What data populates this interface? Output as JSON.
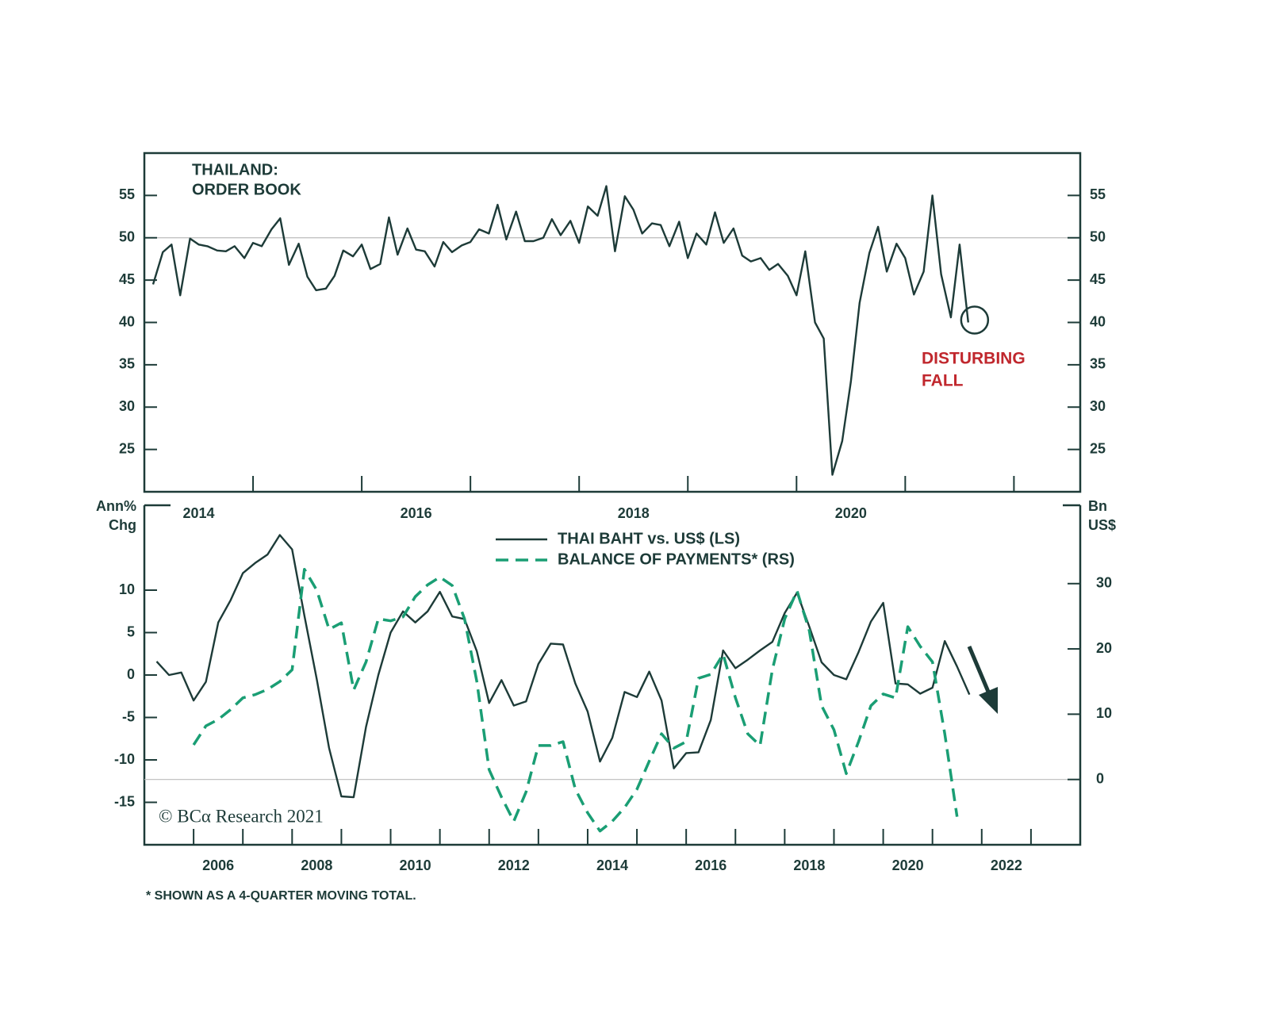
{
  "chart_data": [
    {
      "type": "line",
      "title": [
        "THAILAND:",
        "ORDER BOOK"
      ],
      "annotation": [
        "DISTURBING",
        "FALL"
      ],
      "annotation_color": "#c0272d",
      "x": [
        2014.08,
        2014.17,
        2014.25,
        2014.33,
        2014.42,
        2014.5,
        2014.58,
        2014.67,
        2014.75,
        2014.83,
        2014.92,
        2015,
        2015.08,
        2015.17,
        2015.25,
        2015.33,
        2015.42,
        2015.5,
        2015.58,
        2015.67,
        2015.75,
        2015.83,
        2015.92,
        2016,
        2016.08,
        2016.17,
        2016.25,
        2016.33,
        2016.42,
        2016.5,
        2016.58,
        2016.67,
        2016.75,
        2016.83,
        2016.92,
        2017,
        2017.08,
        2017.17,
        2017.25,
        2017.33,
        2017.42,
        2017.5,
        2017.58,
        2017.67,
        2017.75,
        2017.83,
        2017.92,
        2018,
        2018.08,
        2018.17,
        2018.25,
        2018.33,
        2018.42,
        2018.5,
        2018.58,
        2018.67,
        2018.75,
        2018.83,
        2018.92,
        2019,
        2019.08,
        2019.17,
        2019.25,
        2019.33,
        2019.42,
        2019.5,
        2019.58,
        2019.67,
        2019.75,
        2019.83,
        2019.92,
        2020,
        2020.08,
        2020.17,
        2020.25,
        2020.33,
        2020.42,
        2020.5,
        2020.58,
        2020.67,
        2020.75,
        2020.83,
        2020.92,
        2021,
        2021.08,
        2021.17,
        2021.25,
        2021.33,
        2021.42,
        2021.5,
        2021.58
      ],
      "series": [
        {
          "color": "#1d3b38",
          "values": [
            44.5,
            48.3,
            49.2,
            43.2,
            49.9,
            49.2,
            49,
            48.5,
            48.4,
            49,
            47.6,
            49.4,
            49,
            51,
            52.3,
            46.8,
            49.3,
            45.4,
            43.8,
            44,
            45.5,
            48.5,
            47.8,
            49.2,
            46.3,
            46.9,
            52.4,
            48,
            51.1,
            48.6,
            48.4,
            46.6,
            49.5,
            48.3,
            49.1,
            49.5,
            51,
            50.5,
            53.9,
            49.8,
            53.1,
            49.6,
            49.6,
            50,
            52.2,
            50.3,
            52,
            49.4,
            53.7,
            52.6,
            56.1,
            48.4,
            54.9,
            53.3,
            50.5,
            51.7,
            51.5,
            49,
            51.9,
            47.6,
            50.5,
            49.2,
            53,
            49.4,
            51.1,
            47.9,
            47.2,
            47.6,
            46.2,
            46.9,
            45.5,
            43.2,
            48.4,
            40,
            38.1,
            22,
            26,
            33,
            42.3,
            48.2,
            51.3,
            46,
            49.3,
            47.6,
            43.3,
            46,
            55,
            45.7,
            40.6,
            49.2,
            40
          ]
        }
      ],
      "xlim": [
        2014,
        2022.61
      ],
      "xticks": [
        2014,
        2016,
        2018,
        2020
      ],
      "xtick_marks": [
        2015,
        2016,
        2017,
        2018,
        2019,
        2020,
        2021,
        2022
      ],
      "ylim": [
        20,
        60
      ],
      "yticks": [
        25,
        30,
        35,
        40,
        45,
        50,
        55
      ],
      "mirror_y": true,
      "hline": 50
    },
    {
      "type": "line",
      "ylabel": [
        "Ann%",
        "Chg"
      ],
      "y2label": [
        "Bn",
        "US$"
      ],
      "x": [
        2005.25,
        2005.5,
        2005.75,
        2006,
        2006.25,
        2006.5,
        2006.75,
        2007,
        2007.25,
        2007.5,
        2007.75,
        2008,
        2008.25,
        2008.5,
        2008.75,
        2009,
        2009.25,
        2009.5,
        2009.75,
        2010,
        2010.25,
        2010.5,
        2010.75,
        2011,
        2011.25,
        2011.5,
        2011.75,
        2012,
        2012.25,
        2012.5,
        2012.75,
        2013,
        2013.25,
        2013.5,
        2013.75,
        2014,
        2014.25,
        2014.5,
        2014.75,
        2015,
        2015.25,
        2015.5,
        2015.75,
        2016,
        2016.25,
        2016.5,
        2016.75,
        2017,
        2017.25,
        2017.5,
        2017.75,
        2018,
        2018.25,
        2018.5,
        2018.75,
        2019,
        2019.25,
        2019.5,
        2019.75,
        2020,
        2020.25,
        2020.5,
        2020.75,
        2021,
        2021.25,
        2021.5,
        2021.75
      ],
      "series": [
        {
          "name": "THAI BAHT vs. US$ (LS)",
          "color": "#1d3b38",
          "dashed": false,
          "axis": "y",
          "values": [
            1.6,
            0,
            0.3,
            -3,
            -0.8,
            6.2,
            8.8,
            12,
            13.2,
            14.2,
            16.5,
            14.8,
            7,
            -0.5,
            -8.6,
            -14.3,
            -14.4,
            -6.1,
            0,
            5,
            7.5,
            6.2,
            7.5,
            9.8,
            6.9,
            6.6,
            2.8,
            -3.3,
            -0.6,
            -3.6,
            -3.1,
            1.3,
            3.7,
            3.6,
            -1,
            -4.3,
            -10.2,
            -7.4,
            -2,
            -2.6,
            0.4,
            -3,
            -11,
            -9.2,
            -9.1,
            -5.3,
            2.9,
            0.8,
            1.8,
            2.9,
            3.9,
            7.3,
            9.7,
            5.7,
            1.5,
            0,
            -0.5,
            2.7,
            6.3,
            8.5,
            -1,
            -1.1,
            -2.2,
            -1.5,
            4,
            1,
            -2.3
          ]
        },
        {
          "name": "BALANCE OF PAYMENTS* (RS)",
          "color": "#1a9e74",
          "dashed": true,
          "axis": "y2",
          "values": [
            null,
            null,
            null,
            5.3,
            8.2,
            9.2,
            10.7,
            12.5,
            13,
            13.8,
            15,
            16.8,
            32.2,
            29,
            23,
            24,
            13.7,
            18,
            24.6,
            24.3,
            24.9,
            28,
            29.8,
            31,
            29.7,
            24.6,
            15,
            1.5,
            -2.7,
            -6.4,
            -1.9,
            5.2,
            5.2,
            5.8,
            -1.5,
            -5.1,
            -7.9,
            -6.4,
            -4.3,
            -1.5,
            2.8,
            7,
            4.8,
            5.8,
            15.5,
            16.1,
            19.2,
            12.5,
            7,
            5.2,
            16.8,
            24.6,
            28.9,
            22.8,
            11.3,
            7.6,
            0.9,
            5.8,
            11.3,
            13.1,
            12.5,
            23.4,
            20.4,
            18,
            7,
            -5.7,
            null
          ]
        }
      ],
      "xlim": [
        2005,
        2024
      ],
      "xticks": [
        2006,
        2008,
        2010,
        2012,
        2014,
        2016,
        2018,
        2020,
        2022
      ],
      "xtick_marks": [
        2006,
        2007,
        2008,
        2009,
        2010,
        2011,
        2012,
        2013,
        2014,
        2015,
        2016,
        2017,
        2018,
        2019,
        2020,
        2021,
        2022,
        2023
      ],
      "ylim": [
        -20,
        20
      ],
      "yticks": [
        -15,
        -10,
        -5,
        0,
        5,
        10
      ],
      "y2lim": [
        -10,
        42
      ],
      "y2ticks": [
        0,
        10,
        20,
        30
      ],
      "y2_hline": 0,
      "credit": "© BCα Research 2021",
      "footnote": "* SHOWN AS A 4-QUARTER MOVING TOTAL."
    }
  ]
}
